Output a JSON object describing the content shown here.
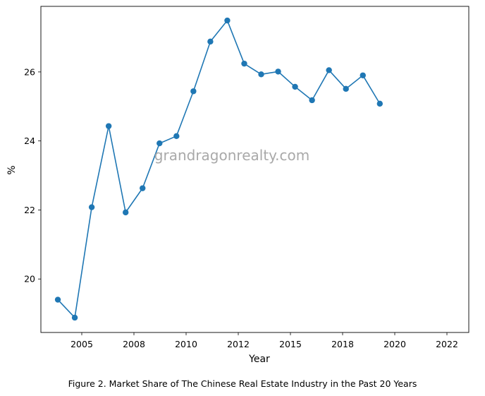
{
  "chart_data": {
    "type": "line",
    "xlabel": "Year",
    "ylabel": "%",
    "x_ticks": [
      "2005",
      "2008",
      "2010",
      "2012",
      "2015",
      "2018",
      "2020",
      "2022"
    ],
    "y_ticks": [
      20,
      22,
      24,
      26
    ],
    "xlim": [
      2003.2,
      2023.4
    ],
    "ylim": [
      18.45,
      27.9
    ],
    "grid": false,
    "legend": "none",
    "series": [
      {
        "color": "#1f77b4",
        "marker": "circle",
        "x": [
          2004.0,
          2004.8,
          2005.6,
          2006.4,
          2007.2,
          2008.0,
          2008.8,
          2009.6,
          2010.4,
          2011.2,
          2012.0,
          2012.8,
          2013.6,
          2014.4,
          2015.2,
          2016.0,
          2016.8,
          2017.6,
          2018.4,
          2019.2,
          2020.0,
          2020.8
        ],
        "y": [
          19.4,
          18.88,
          22.08,
          24.43,
          21.93,
          22.63,
          23.93,
          24.14,
          25.44,
          26.88,
          27.49,
          26.24,
          25.93,
          26.01,
          25.57,
          25.18,
          26.05,
          25.51,
          25.9,
          25.08,
          null,
          null
        ]
      }
    ],
    "watermark": "grandragonrealty.com"
  },
  "caption": "Figure 2. Market Share of The Chinese Real Estate Industry in the Past 20 Years"
}
